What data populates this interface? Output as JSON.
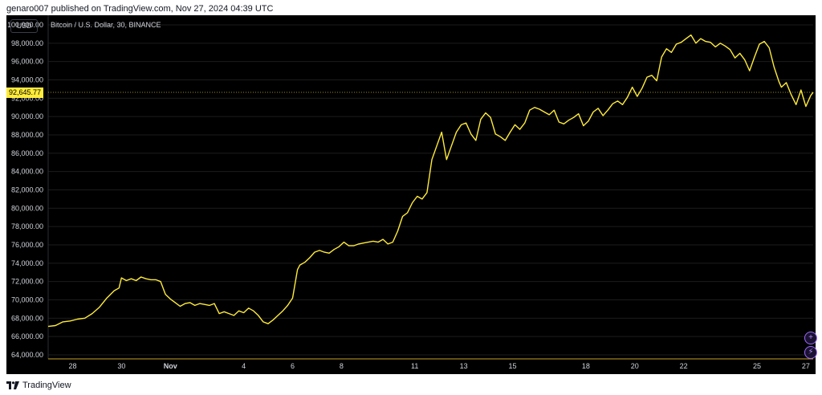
{
  "header": {
    "publish_line": "genaro007 published on TradingView.com, Nov 27, 2024 04:39 UTC"
  },
  "toolbar": {
    "currency_label": "USD",
    "symbol_title": "Bitcoin / U.S. Dollar, 30, BINANCE"
  },
  "price_label": "92,645.77",
  "footer": {
    "brand": "TradingView"
  },
  "colors": {
    "background": "#000000",
    "line": "#ffeb3b",
    "axis_text": "#d1d4dc",
    "grid": "#1c1c1c",
    "baseline": "#c9a227"
  },
  "icons": [
    "plus-circle-icon",
    "lightning-icon",
    "tradingview-logo-icon"
  ],
  "chart_data": {
    "type": "line",
    "title": "Bitcoin / U.S. Dollar, 30, BINANCE",
    "xlabel": "",
    "ylabel": "",
    "ylim": [
      64000,
      101000
    ],
    "xlim": [
      27.0,
      58.3
    ],
    "grid": true,
    "y_ticks": [
      {
        "value": 64000,
        "label": "64,000.00"
      },
      {
        "value": 66000,
        "label": "66,000.00"
      },
      {
        "value": 68000,
        "label": "68,000.00"
      },
      {
        "value": 70000,
        "label": "70,000.00"
      },
      {
        "value": 72000,
        "label": "72,000.00"
      },
      {
        "value": 74000,
        "label": "74,000.00"
      },
      {
        "value": 76000,
        "label": "76,000.00"
      },
      {
        "value": 78000,
        "label": "78,000.00"
      },
      {
        "value": 80000,
        "label": "80,000.00"
      },
      {
        "value": 82000,
        "label": "82,000.00"
      },
      {
        "value": 84000,
        "label": "84,000.00"
      },
      {
        "value": 86000,
        "label": "86,000.00"
      },
      {
        "value": 88000,
        "label": "88,000.00"
      },
      {
        "value": 90000,
        "label": "90,000.00"
      },
      {
        "value": 92000,
        "label": "92,000.00"
      },
      {
        "value": 94000,
        "label": "94,000.00"
      },
      {
        "value": 96000,
        "label": "96,000.00"
      },
      {
        "value": 98000,
        "label": "98,000.00"
      },
      {
        "value": 100000,
        "label": "100,000.00"
      }
    ],
    "x_ticks": [
      {
        "value": 28,
        "label": "28"
      },
      {
        "value": 30,
        "label": "30"
      },
      {
        "value": 32,
        "label": "Nov"
      },
      {
        "value": 35,
        "label": "4"
      },
      {
        "value": 37,
        "label": "6"
      },
      {
        "value": 39,
        "label": "8"
      },
      {
        "value": 42,
        "label": "11"
      },
      {
        "value": 44,
        "label": "13"
      },
      {
        "value": 46,
        "label": "15"
      },
      {
        "value": 49,
        "label": "18"
      },
      {
        "value": 51,
        "label": "20"
      },
      {
        "value": 53,
        "label": "22"
      },
      {
        "value": 56,
        "label": "25"
      },
      {
        "value": 58,
        "label": "27"
      }
    ],
    "current_price": 92645.77,
    "series": [
      {
        "values": [
          [
            27.0,
            67100
          ],
          [
            27.3,
            67200
          ],
          [
            27.6,
            67600
          ],
          [
            27.9,
            67700
          ],
          [
            28.2,
            67900
          ],
          [
            28.5,
            68000
          ],
          [
            28.8,
            68500
          ],
          [
            29.1,
            69200
          ],
          [
            29.4,
            70200
          ],
          [
            29.7,
            71000
          ],
          [
            29.9,
            71300
          ],
          [
            30.0,
            72400
          ],
          [
            30.2,
            72100
          ],
          [
            30.4,
            72300
          ],
          [
            30.6,
            72100
          ],
          [
            30.8,
            72500
          ],
          [
            31.0,
            72300
          ],
          [
            31.2,
            72200
          ],
          [
            31.4,
            72200
          ],
          [
            31.6,
            72000
          ],
          [
            31.8,
            70600
          ],
          [
            32.0,
            70100
          ],
          [
            32.2,
            69700
          ],
          [
            32.4,
            69300
          ],
          [
            32.6,
            69600
          ],
          [
            32.8,
            69700
          ],
          [
            33.0,
            69400
          ],
          [
            33.2,
            69600
          ],
          [
            33.4,
            69500
          ],
          [
            33.6,
            69400
          ],
          [
            33.8,
            69600
          ],
          [
            34.0,
            68500
          ],
          [
            34.2,
            68700
          ],
          [
            34.4,
            68500
          ],
          [
            34.6,
            68300
          ],
          [
            34.8,
            68800
          ],
          [
            35.0,
            68600
          ],
          [
            35.2,
            69100
          ],
          [
            35.4,
            68800
          ],
          [
            35.6,
            68300
          ],
          [
            35.8,
            67600
          ],
          [
            36.0,
            67400
          ],
          [
            36.2,
            67800
          ],
          [
            36.4,
            68300
          ],
          [
            36.6,
            68800
          ],
          [
            36.8,
            69400
          ],
          [
            37.0,
            70200
          ],
          [
            37.2,
            73300
          ],
          [
            37.3,
            73800
          ],
          [
            37.5,
            74100
          ],
          [
            37.7,
            74600
          ],
          [
            37.9,
            75200
          ],
          [
            38.1,
            75400
          ],
          [
            38.3,
            75200
          ],
          [
            38.5,
            75100
          ],
          [
            38.7,
            75500
          ],
          [
            38.9,
            75800
          ],
          [
            39.1,
            76300
          ],
          [
            39.3,
            75900
          ],
          [
            39.5,
            75900
          ],
          [
            39.7,
            76100
          ],
          [
            39.9,
            76200
          ],
          [
            40.1,
            76300
          ],
          [
            40.3,
            76400
          ],
          [
            40.5,
            76300
          ],
          [
            40.7,
            76600
          ],
          [
            40.9,
            76100
          ],
          [
            41.1,
            76300
          ],
          [
            41.3,
            77500
          ],
          [
            41.5,
            79100
          ],
          [
            41.7,
            79500
          ],
          [
            41.9,
            80600
          ],
          [
            42.1,
            81300
          ],
          [
            42.3,
            81000
          ],
          [
            42.5,
            81700
          ],
          [
            42.7,
            85300
          ],
          [
            42.9,
            86800
          ],
          [
            43.1,
            88300
          ],
          [
            43.3,
            85300
          ],
          [
            43.5,
            86800
          ],
          [
            43.7,
            88300
          ],
          [
            43.9,
            89100
          ],
          [
            44.1,
            89300
          ],
          [
            44.3,
            88100
          ],
          [
            44.5,
            87400
          ],
          [
            44.7,
            89700
          ],
          [
            44.9,
            90400
          ],
          [
            45.1,
            89900
          ],
          [
            45.3,
            88100
          ],
          [
            45.5,
            87800
          ],
          [
            45.7,
            87400
          ],
          [
            45.9,
            88300
          ],
          [
            46.1,
            89100
          ],
          [
            46.3,
            88600
          ],
          [
            46.5,
            89300
          ],
          [
            46.7,
            90700
          ],
          [
            46.9,
            91000
          ],
          [
            47.1,
            90800
          ],
          [
            47.3,
            90500
          ],
          [
            47.5,
            90200
          ],
          [
            47.7,
            90700
          ],
          [
            47.9,
            89400
          ],
          [
            48.1,
            89200
          ],
          [
            48.3,
            89600
          ],
          [
            48.5,
            89900
          ],
          [
            48.7,
            90300
          ],
          [
            48.9,
            89000
          ],
          [
            49.1,
            89500
          ],
          [
            49.3,
            90500
          ],
          [
            49.5,
            90900
          ],
          [
            49.7,
            90100
          ],
          [
            49.9,
            90700
          ],
          [
            50.1,
            91400
          ],
          [
            50.3,
            91700
          ],
          [
            50.5,
            91300
          ],
          [
            50.7,
            92100
          ],
          [
            50.9,
            93200
          ],
          [
            51.1,
            92200
          ],
          [
            51.3,
            93100
          ],
          [
            51.5,
            94300
          ],
          [
            51.7,
            94500
          ],
          [
            51.9,
            93900
          ],
          [
            52.1,
            96500
          ],
          [
            52.3,
            97400
          ],
          [
            52.5,
            97000
          ],
          [
            52.7,
            97900
          ],
          [
            52.9,
            98100
          ],
          [
            53.1,
            98500
          ],
          [
            53.3,
            98900
          ],
          [
            53.5,
            98000
          ],
          [
            53.7,
            98500
          ],
          [
            53.9,
            98200
          ],
          [
            54.1,
            98100
          ],
          [
            54.3,
            97600
          ],
          [
            54.5,
            98000
          ],
          [
            54.7,
            97700
          ],
          [
            54.9,
            97300
          ],
          [
            55.1,
            96400
          ],
          [
            55.3,
            96900
          ],
          [
            55.5,
            96200
          ],
          [
            55.7,
            95000
          ],
          [
            55.9,
            96500
          ],
          [
            56.1,
            97900
          ],
          [
            56.3,
            98200
          ],
          [
            56.5,
            97500
          ],
          [
            56.7,
            95400
          ],
          [
            56.9,
            93800
          ],
          [
            57.0,
            93200
          ],
          [
            57.2,
            93700
          ],
          [
            57.4,
            92400
          ],
          [
            57.6,
            91300
          ],
          [
            57.8,
            92900
          ],
          [
            58.0,
            91100
          ],
          [
            58.2,
            92300
          ],
          [
            58.3,
            92650
          ]
        ]
      }
    ]
  }
}
